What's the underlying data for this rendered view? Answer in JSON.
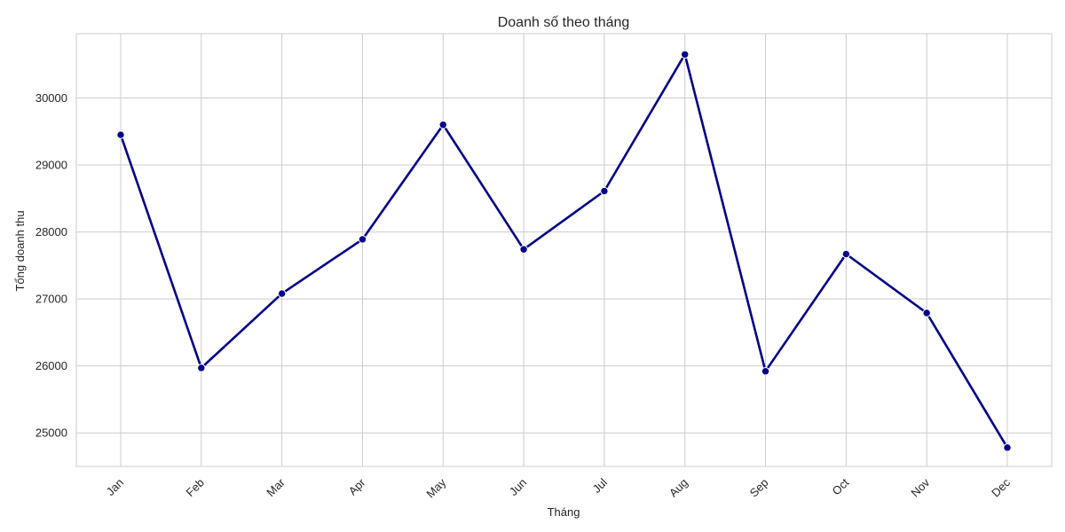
{
  "chart_data": {
    "type": "line",
    "title": "Doanh số theo tháng",
    "xlabel": "Tháng",
    "ylabel": "Tổng doanh thu",
    "categories": [
      "Jan",
      "Feb",
      "Mar",
      "Apr",
      "May",
      "Jun",
      "Jul",
      "Aug",
      "Sep",
      "Oct",
      "Nov",
      "Dec"
    ],
    "series": [
      {
        "values": [
          29450,
          25970,
          27080,
          27890,
          29600,
          27740,
          28610,
          30650,
          25920,
          27670,
          26790,
          24780
        ]
      }
    ],
    "ylim": [
      24500,
      30960
    ],
    "yticks": [
      25000,
      26000,
      27000,
      28000,
      29000,
      30000
    ],
    "ytick_labels": [
      "25000",
      "26000",
      "27000",
      "28000",
      "29000",
      "30000"
    ],
    "grid": true,
    "line_color": "#00008b",
    "marker": "circle",
    "xtick_rotation": "45°"
  }
}
